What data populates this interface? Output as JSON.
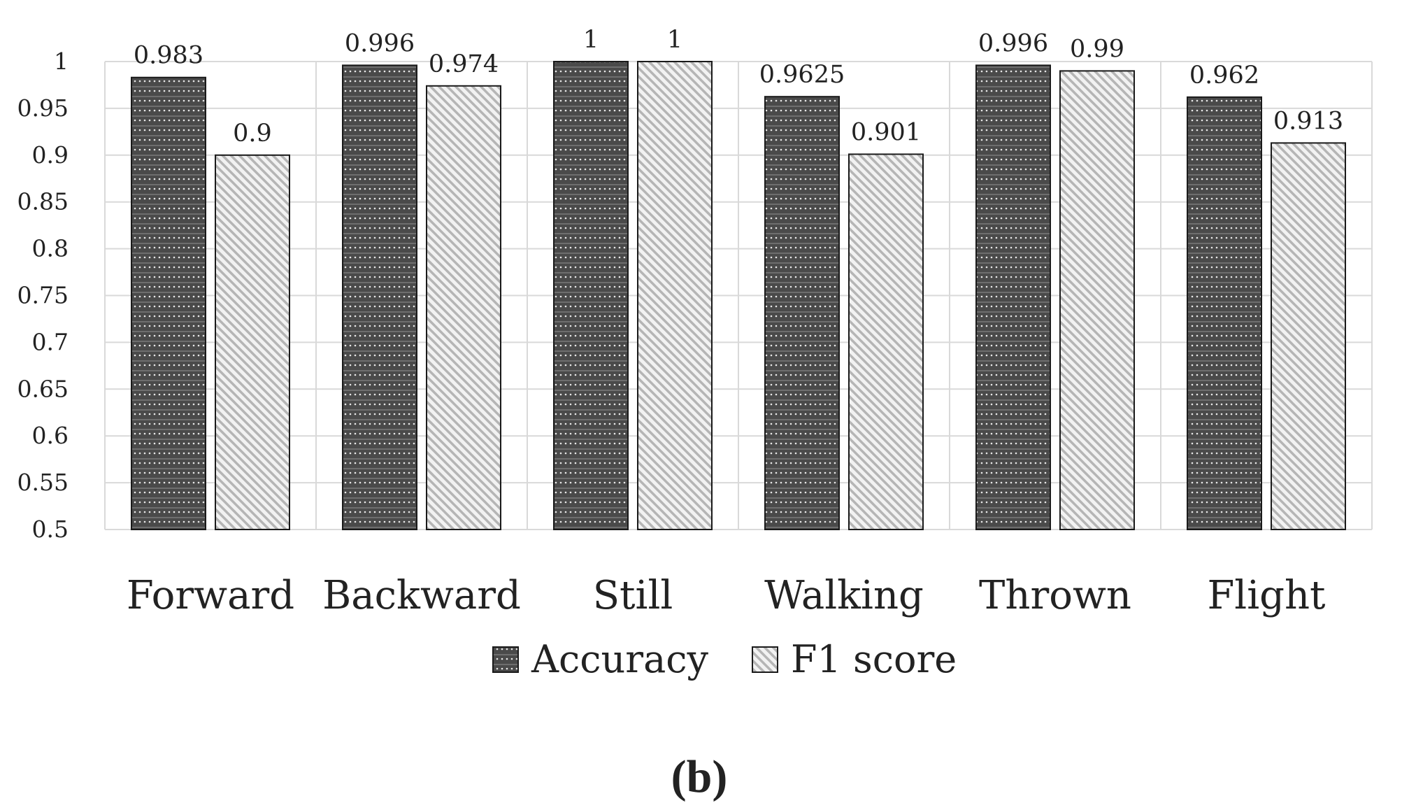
{
  "chart_data": {
    "type": "bar",
    "title": "",
    "xlabel": "",
    "ylabel": "",
    "categories": [
      "Forward",
      "Backward",
      "Still",
      "Walking",
      "Thrown",
      "Flight"
    ],
    "series": [
      {
        "name": "Accuracy",
        "values": [
          0.983,
          0.996,
          1,
          0.9625,
          0.996,
          0.962
        ],
        "labels": [
          "0.983",
          "0.996",
          "1",
          "0.9625",
          "0.996",
          "0.962"
        ]
      },
      {
        "name": "F1 score",
        "values": [
          0.9,
          0.974,
          1,
          0.901,
          0.99,
          0.913
        ],
        "labels": [
          "0.9",
          "0.974",
          "1",
          "0.901",
          "0.99",
          "0.913"
        ]
      }
    ],
    "ylim": [
      0.5,
      1
    ],
    "yticks": [
      "0.5",
      "0.55",
      "0.6",
      "0.65",
      "0.7",
      "0.75",
      "0.8",
      "0.85",
      "0.9",
      "0.95",
      "1"
    ],
    "grid": true,
    "legend_position": "bottom"
  },
  "caption": "(b)",
  "colors": {
    "accuracy_fill": "#4a4a4a",
    "f1_stripe": "#b5b5b5",
    "f1_background": "#f2f2f2",
    "grid": "#d9d9d9",
    "bar_outline": "#1a1a1a"
  }
}
